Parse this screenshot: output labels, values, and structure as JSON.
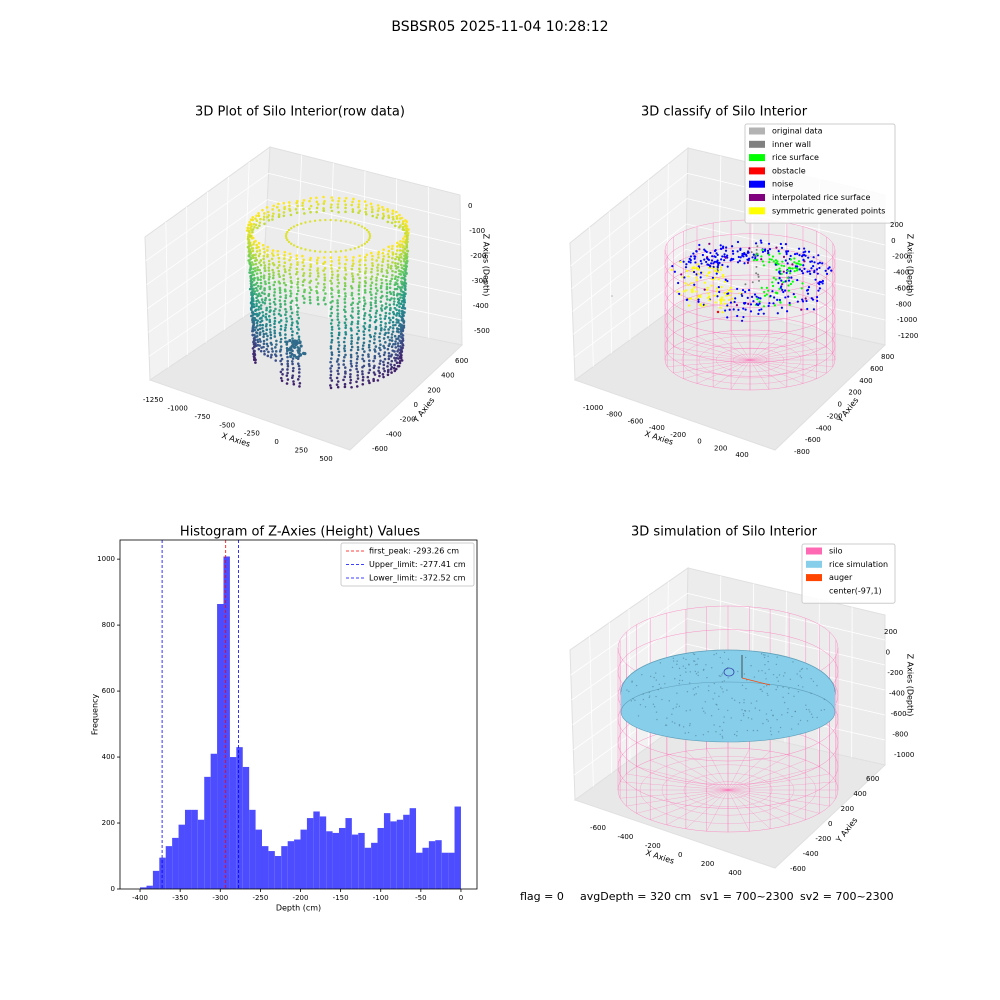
{
  "title": "BSBSR05 2025-11-04 10:28:12",
  "footer": [
    "flag = 0",
    "avgDepth = 320 cm",
    "sv1 = 700~2300",
    "sv2 = 700~2300"
  ],
  "chart_data": [
    {
      "type": "scatter3d",
      "title": "3D Plot of Silo Interior(row data)",
      "xlabel": "X Axies",
      "ylabel": "Y Axies",
      "zlabel": "Z Axies (Depth)",
      "xlim": [
        -1250,
        500
      ],
      "xticks": [
        -1250,
        -1000,
        -750,
        -500,
        -250,
        0,
        250,
        500
      ],
      "ylim": [
        -600,
        600
      ],
      "yticks": [
        -600,
        -400,
        -200,
        0,
        200,
        400,
        600
      ],
      "zlim": [
        -500,
        0
      ],
      "zticks": [
        -500,
        -400,
        -300,
        -200,
        -100,
        0
      ],
      "colormap": "viridis"
    },
    {
      "type": "scatter3d",
      "title": "3D classify of Silo Interior",
      "xlabel": "X Axies",
      "ylabel": "Y Axies",
      "zlabel": "Z Axies (Depth)",
      "xlim": [
        -1000,
        400
      ],
      "xticks": [
        -1000,
        -800,
        -600,
        -400,
        -200,
        0,
        200,
        400
      ],
      "ylim": [
        -800,
        800
      ],
      "yticks": [
        -800,
        -600,
        -400,
        -200,
        0,
        200,
        400,
        600,
        800
      ],
      "zlim": [
        -1200,
        200
      ],
      "zticks": [
        -1200,
        -1000,
        -800,
        -600,
        -400,
        -200,
        0,
        200
      ],
      "legend": [
        {
          "name": "original data",
          "color": "#b3b3b3"
        },
        {
          "name": "inner wall",
          "color": "#808080"
        },
        {
          "name": "rice surface",
          "color": "#00ff00"
        },
        {
          "name": "obstacle",
          "color": "#ff0000"
        },
        {
          "name": "noise",
          "color": "#0000ff"
        },
        {
          "name": "interpolated rice surface",
          "color": "#800080"
        },
        {
          "name": "symmetric generated points",
          "color": "#ffff00"
        }
      ]
    },
    {
      "type": "histogram",
      "title": "Histogram of Z-Axies (Height) Values",
      "xlabel": "Depth (cm)",
      "ylabel": "Frequency",
      "color": "#4d4dff",
      "bins": [
        -400,
        -392,
        -384,
        -376,
        -368,
        -360,
        -352,
        -344,
        -336,
        -328,
        -320,
        -312,
        -304,
        -296,
        -288,
        -280,
        -272,
        -264,
        -256,
        -248,
        -240,
        -232,
        -224,
        -216,
        -208,
        -200,
        -192,
        -184,
        -176,
        -168,
        -160,
        -152,
        -144,
        -136,
        -128,
        -120,
        -112,
        -104,
        -96,
        -88,
        -80,
        -72,
        -64,
        -56,
        -48,
        -40,
        -32,
        -24,
        -16,
        -8,
        0
      ],
      "counts": [
        5,
        10,
        55,
        95,
        130,
        155,
        195,
        240,
        240,
        210,
        340,
        410,
        864,
        1008,
        400,
        430,
        370,
        240,
        180,
        130,
        115,
        100,
        130,
        145,
        150,
        180,
        215,
        235,
        220,
        175,
        170,
        185,
        215,
        165,
        170,
        125,
        140,
        185,
        230,
        205,
        210,
        225,
        245,
        110,
        125,
        145,
        148,
        110,
        110,
        250
      ],
      "xlim": [
        -425,
        20
      ],
      "xticks": [
        -400,
        -350,
        -300,
        -250,
        -200,
        -150,
        -100,
        -50,
        0
      ],
      "ylim": [
        0,
        1058
      ],
      "yticks": [
        0,
        200,
        400,
        600,
        800,
        1000
      ],
      "lines": [
        {
          "name": "first_peak: -293.26 cm",
          "value": -293.26,
          "color": "#ff0000"
        },
        {
          "name": "Upper_limit: -277.41 cm",
          "value": -277.41,
          "color": "#0000ff"
        },
        {
          "name": "Lower_limit: -372.52 cm",
          "value": -372.52,
          "color": "#0000ff"
        }
      ]
    },
    {
      "type": "surface3d",
      "title": "3D simulation of Silo Interior",
      "xlabel": "X Axies",
      "ylabel": "Y Axies",
      "zlabel": "Z Axies (Depth)",
      "xlim": [
        -600,
        400
      ],
      "xticks": [
        -600,
        -400,
        -200,
        0,
        200,
        400
      ],
      "ylim": [
        -600,
        600
      ],
      "yticks": [
        -600,
        -400,
        -200,
        0,
        200,
        400,
        600
      ],
      "zlim": [
        -1000,
        200
      ],
      "zticks": [
        -1000,
        -800,
        -600,
        -400,
        -200,
        0,
        200
      ],
      "legend": [
        {
          "name": "silo",
          "color": "#ff69b4"
        },
        {
          "name": "rice simulation",
          "color": "#87ceeb"
        },
        {
          "name": "auger",
          "color": "#ff4500"
        },
        {
          "name": "center(-97,1)"
        }
      ]
    }
  ]
}
